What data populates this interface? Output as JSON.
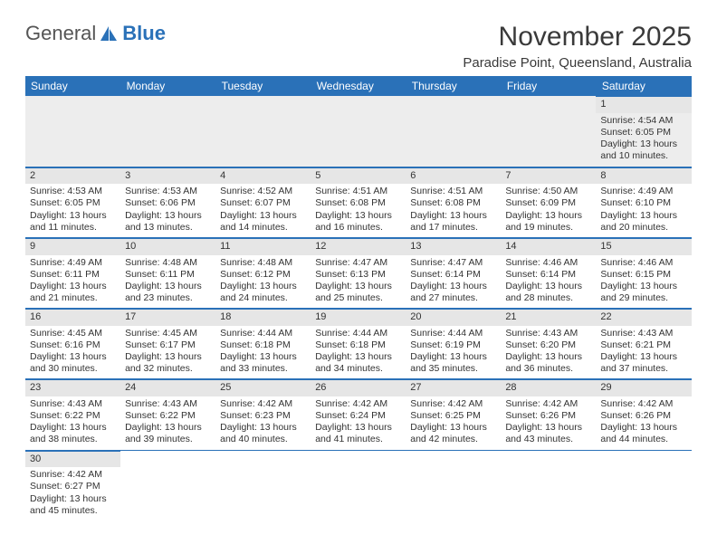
{
  "logo": {
    "text1": "General",
    "text2": "Blue"
  },
  "title": "November 2025",
  "subtitle": "Paradise Point, Queensland, Australia",
  "colors": {
    "headerBg": "#2a71b8",
    "dayBar": "#e6e6e6",
    "gridLine": "#2a71b8",
    "text": "#333333",
    "bg": "#ffffff"
  },
  "typography": {
    "title_fontsize": 30,
    "subtitle_fontsize": 15,
    "header_fontsize": 12,
    "cell_fontsize": 10.5
  },
  "dayHeaders": [
    "Sunday",
    "Monday",
    "Tuesday",
    "Wednesday",
    "Thursday",
    "Friday",
    "Saturday"
  ],
  "weeks": [
    [
      null,
      null,
      null,
      null,
      null,
      null,
      {
        "n": "1",
        "sr": "4:54 AM",
        "ss": "6:05 PM",
        "dl": "13 hours and 10 minutes."
      }
    ],
    [
      {
        "n": "2",
        "sr": "4:53 AM",
        "ss": "6:05 PM",
        "dl": "13 hours and 11 minutes."
      },
      {
        "n": "3",
        "sr": "4:53 AM",
        "ss": "6:06 PM",
        "dl": "13 hours and 13 minutes."
      },
      {
        "n": "4",
        "sr": "4:52 AM",
        "ss": "6:07 PM",
        "dl": "13 hours and 14 minutes."
      },
      {
        "n": "5",
        "sr": "4:51 AM",
        "ss": "6:08 PM",
        "dl": "13 hours and 16 minutes."
      },
      {
        "n": "6",
        "sr": "4:51 AM",
        "ss": "6:08 PM",
        "dl": "13 hours and 17 minutes."
      },
      {
        "n": "7",
        "sr": "4:50 AM",
        "ss": "6:09 PM",
        "dl": "13 hours and 19 minutes."
      },
      {
        "n": "8",
        "sr": "4:49 AM",
        "ss": "6:10 PM",
        "dl": "13 hours and 20 minutes."
      }
    ],
    [
      {
        "n": "9",
        "sr": "4:49 AM",
        "ss": "6:11 PM",
        "dl": "13 hours and 21 minutes."
      },
      {
        "n": "10",
        "sr": "4:48 AM",
        "ss": "6:11 PM",
        "dl": "13 hours and 23 minutes."
      },
      {
        "n": "11",
        "sr": "4:48 AM",
        "ss": "6:12 PM",
        "dl": "13 hours and 24 minutes."
      },
      {
        "n": "12",
        "sr": "4:47 AM",
        "ss": "6:13 PM",
        "dl": "13 hours and 25 minutes."
      },
      {
        "n": "13",
        "sr": "4:47 AM",
        "ss": "6:14 PM",
        "dl": "13 hours and 27 minutes."
      },
      {
        "n": "14",
        "sr": "4:46 AM",
        "ss": "6:14 PM",
        "dl": "13 hours and 28 minutes."
      },
      {
        "n": "15",
        "sr": "4:46 AM",
        "ss": "6:15 PM",
        "dl": "13 hours and 29 minutes."
      }
    ],
    [
      {
        "n": "16",
        "sr": "4:45 AM",
        "ss": "6:16 PM",
        "dl": "13 hours and 30 minutes."
      },
      {
        "n": "17",
        "sr": "4:45 AM",
        "ss": "6:17 PM",
        "dl": "13 hours and 32 minutes."
      },
      {
        "n": "18",
        "sr": "4:44 AM",
        "ss": "6:18 PM",
        "dl": "13 hours and 33 minutes."
      },
      {
        "n": "19",
        "sr": "4:44 AM",
        "ss": "6:18 PM",
        "dl": "13 hours and 34 minutes."
      },
      {
        "n": "20",
        "sr": "4:44 AM",
        "ss": "6:19 PM",
        "dl": "13 hours and 35 minutes."
      },
      {
        "n": "21",
        "sr": "4:43 AM",
        "ss": "6:20 PM",
        "dl": "13 hours and 36 minutes."
      },
      {
        "n": "22",
        "sr": "4:43 AM",
        "ss": "6:21 PM",
        "dl": "13 hours and 37 minutes."
      }
    ],
    [
      {
        "n": "23",
        "sr": "4:43 AM",
        "ss": "6:22 PM",
        "dl": "13 hours and 38 minutes."
      },
      {
        "n": "24",
        "sr": "4:43 AM",
        "ss": "6:22 PM",
        "dl": "13 hours and 39 minutes."
      },
      {
        "n": "25",
        "sr": "4:42 AM",
        "ss": "6:23 PM",
        "dl": "13 hours and 40 minutes."
      },
      {
        "n": "26",
        "sr": "4:42 AM",
        "ss": "6:24 PM",
        "dl": "13 hours and 41 minutes."
      },
      {
        "n": "27",
        "sr": "4:42 AM",
        "ss": "6:25 PM",
        "dl": "13 hours and 42 minutes."
      },
      {
        "n": "28",
        "sr": "4:42 AM",
        "ss": "6:26 PM",
        "dl": "13 hours and 43 minutes."
      },
      {
        "n": "29",
        "sr": "4:42 AM",
        "ss": "6:26 PM",
        "dl": "13 hours and 44 minutes."
      }
    ],
    [
      {
        "n": "30",
        "sr": "4:42 AM",
        "ss": "6:27 PM",
        "dl": "13 hours and 45 minutes."
      },
      null,
      null,
      null,
      null,
      null,
      null
    ]
  ],
  "labels": {
    "sunrise": "Sunrise:",
    "sunset": "Sunset:",
    "daylight": "Daylight:"
  }
}
